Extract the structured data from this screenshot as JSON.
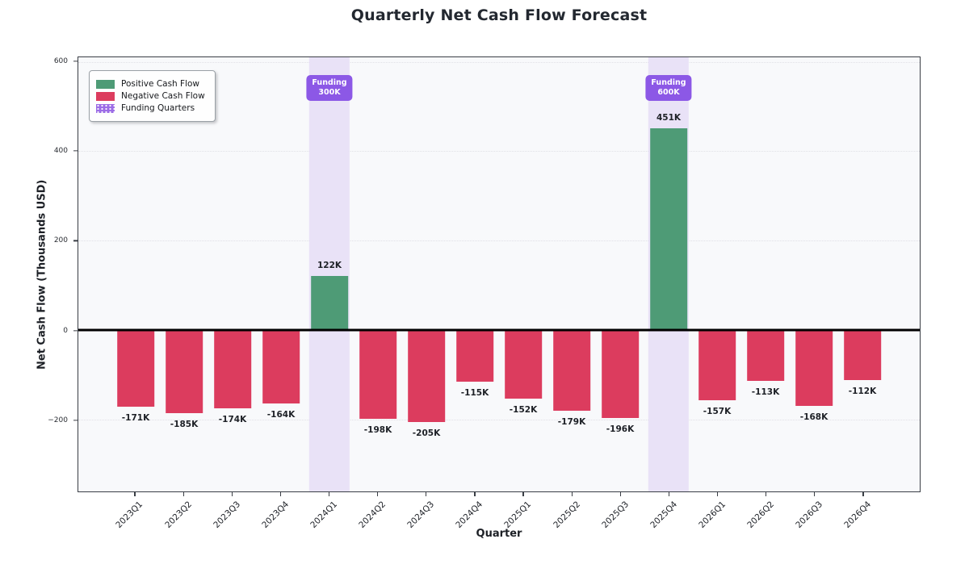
{
  "chart_data": {
    "type": "bar",
    "title": "Quarterly Net Cash Flow Forecast",
    "xlabel": "Quarter",
    "ylabel": "Net Cash Flow (Thousands USD)",
    "categories": [
      "2023Q1",
      "2023Q2",
      "2023Q3",
      "2023Q4",
      "2024Q1",
      "2024Q2",
      "2024Q3",
      "2024Q4",
      "2025Q1",
      "2025Q2",
      "2025Q3",
      "2025Q4",
      "2026Q1",
      "2026Q2",
      "2026Q3",
      "2026Q4"
    ],
    "values": [
      -171,
      -185,
      -174,
      -164,
      122,
      -198,
      -205,
      -115,
      -152,
      -179,
      -196,
      451,
      -157,
      -113,
      -168,
      -112
    ],
    "bar_labels": [
      "-171K",
      "-185K",
      "-174K",
      "-164K",
      "122K",
      "-198K",
      "-205K",
      "-115K",
      "-152K",
      "-179K",
      "-196K",
      "451K",
      "-157K",
      "-113K",
      "-168K",
      "-112K"
    ],
    "ylim": [
      -360,
      610
    ],
    "yticks": [
      {
        "value": 600,
        "label": "600"
      },
      {
        "value": 400,
        "label": "400"
      },
      {
        "value": 200,
        "label": "200"
      },
      {
        "value": 0,
        "label": "0"
      },
      {
        "value": -200,
        "label": "−200"
      }
    ],
    "grid": "horizontal-dotted",
    "funding_events": [
      {
        "index": 4,
        "category": "2024Q1",
        "badge_line1": "Funding",
        "badge_line2": "300K"
      },
      {
        "index": 11,
        "category": "2025Q4",
        "badge_line1": "Funding",
        "badge_line2": "600K"
      }
    ],
    "legend": {
      "position": "upper-left",
      "entries": [
        {
          "label": "Positive Cash Flow",
          "color": "#4e9b76",
          "hatch": "none"
        },
        {
          "label": "Negative Cash Flow",
          "color": "#dc3c5e",
          "hatch": "none"
        },
        {
          "label": "Funding Quarters",
          "color": "#9c6ce6",
          "hatch": "dots"
        }
      ]
    },
    "colors": {
      "positive": "#4e9b76",
      "negative": "#dc3c5e",
      "funding_band": "#e9e2f7",
      "funding_badge": "#8c58e6",
      "zero_line": "#000000",
      "plot_background": "#f8f9fb"
    }
  }
}
